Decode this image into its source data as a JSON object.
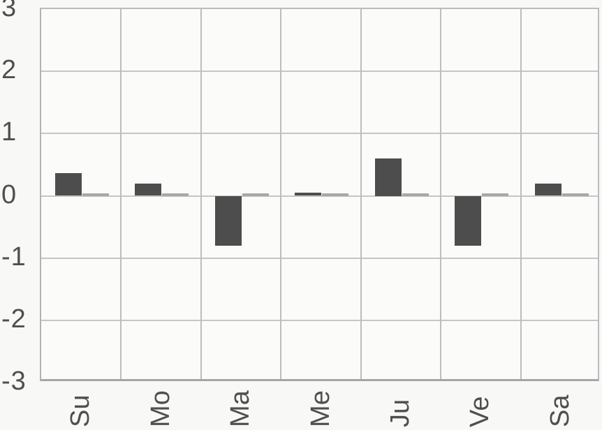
{
  "chart_data": {
    "type": "bar",
    "title": "",
    "xlabel": "",
    "ylabel": "",
    "categories": [
      "Su",
      "Mo",
      "Ma",
      "Me",
      "Ju",
      "Ve",
      "Sa"
    ],
    "series": [
      {
        "name": "dark-bars",
        "color": "#4d4d4d",
        "values": [
          0.37,
          0.2,
          -0.8,
          0.05,
          0.6,
          -0.8,
          0.2
        ]
      },
      {
        "name": "gray-zero-bars",
        "color": "#a8a8a8",
        "values": [
          0,
          0,
          0,
          0,
          0,
          0,
          0
        ]
      }
    ],
    "ylim": [
      -3,
      3
    ],
    "yticks": [
      3,
      2,
      1,
      0,
      -1,
      -2,
      -3
    ],
    "grid": true,
    "legend": false,
    "tick_label_color": "#4f4f4f",
    "grid_color": "#c6c6c6",
    "background_color": "#f8f8f7"
  }
}
